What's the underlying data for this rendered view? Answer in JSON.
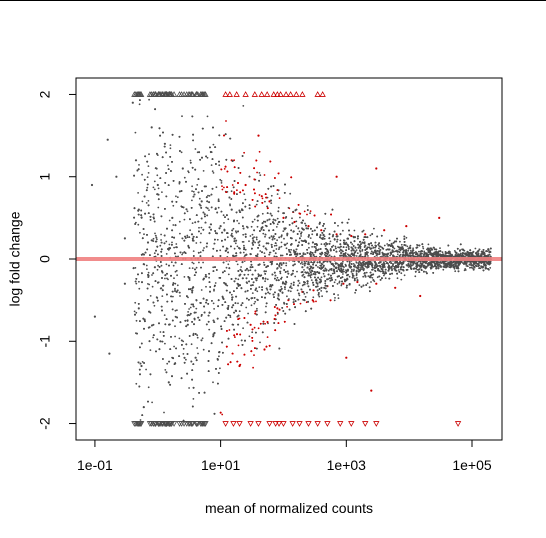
{
  "chart_data": {
    "type": "scatter",
    "title": "",
    "xlabel": "mean of normalized counts",
    "ylabel": "log fold change",
    "x_scale": "log10",
    "xlim": [
      0.05,
      300000
    ],
    "ylim": [
      -2.2,
      2.2
    ],
    "x_ticks": [
      {
        "value": 0.1,
        "label": "1e-01"
      },
      {
        "value": 10,
        "label": "1e+01"
      },
      {
        "value": 1000,
        "label": "1e+03"
      },
      {
        "value": 100000,
        "label": "1e+05"
      }
    ],
    "y_ticks": [
      {
        "value": -2,
        "label": "-2"
      },
      {
        "value": -1,
        "label": "-1"
      },
      {
        "value": 0,
        "label": "0"
      },
      {
        "value": 1,
        "label": "1"
      },
      {
        "value": 2,
        "label": "2"
      }
    ],
    "reference_line": {
      "y": 0,
      "color": "#f08080"
    },
    "grid": false,
    "legend": "none",
    "colors": {
      "not_significant": "#4d4d4d",
      "significant": "#cc0000",
      "reference": "#f08080"
    },
    "out_of_range_markers": {
      "up_triangles_at": 2,
      "down_triangles_at": -2
    },
    "series": [
      {
        "color": "#4d4d4d",
        "points": [
          [
            0.09,
            0.9
          ],
          [
            0.16,
            1.45
          ],
          [
            0.1,
            -0.7
          ],
          [
            0.17,
            -1.15
          ],
          [
            0.22,
            1.0
          ],
          [
            0.3,
            0.25
          ],
          [
            0.3,
            -0.3
          ],
          [
            0.4,
            1.9
          ],
          [
            0.45,
            1.2
          ],
          [
            0.5,
            0.6
          ],
          [
            0.5,
            -0.6
          ],
          [
            0.55,
            -1.3
          ],
          [
            0.6,
            -1.8
          ],
          [
            0.7,
            0.2
          ],
          [
            0.8,
            1.6
          ],
          [
            0.9,
            -0.1
          ],
          [
            1.0,
            0.9
          ],
          [
            1.1,
            -1.0
          ],
          [
            1.3,
            1.4
          ],
          [
            1.5,
            -1.5
          ],
          [
            1.7,
            0.5
          ],
          [
            2.0,
            -0.4
          ],
          [
            2.5,
            1.1
          ],
          [
            3.0,
            -0.8
          ],
          [
            3.5,
            0.3
          ],
          [
            4.0,
            -1.2
          ],
          [
            5.0,
            0.7
          ],
          [
            6.0,
            -0.5
          ],
          [
            7.0,
            1.3
          ],
          [
            8.0,
            -0.9
          ],
          [
            10,
            0.4
          ],
          [
            12,
            -0.3
          ],
          [
            15,
            0.6
          ],
          [
            20,
            -0.2
          ],
          [
            25,
            0.3
          ],
          [
            30,
            -0.1
          ],
          [
            40,
            0.2
          ],
          [
            50,
            -0.15
          ],
          [
            70,
            0.1
          ],
          [
            100,
            -0.05
          ],
          [
            150,
            0.08
          ],
          [
            200,
            -0.1
          ],
          [
            300,
            0.05
          ],
          [
            500,
            -0.03
          ],
          [
            800,
            0.04
          ],
          [
            1200,
            -0.02
          ],
          [
            2000,
            0.03
          ],
          [
            3500,
            -0.04
          ],
          [
            6000,
            0.02
          ],
          [
            10000,
            -0.03
          ],
          [
            20000,
            0.05
          ],
          [
            40000,
            -0.02
          ],
          [
            90000,
            0.03
          ]
        ]
      },
      {
        "color": "#cc0000",
        "points": [
          [
            15,
            1.2
          ],
          [
            20,
            -1.3
          ],
          [
            25,
            0.9
          ],
          [
            30,
            -0.8
          ],
          [
            40,
            1.5
          ],
          [
            50,
            -1.1
          ],
          [
            60,
            0.7
          ],
          [
            80,
            -0.6
          ],
          [
            100,
            0.5
          ],
          [
            120,
            -0.5
          ],
          [
            150,
            0.45
          ],
          [
            200,
            -0.4
          ],
          [
            250,
            0.4
          ],
          [
            300,
            -0.38
          ],
          [
            400,
            0.35
          ],
          [
            500,
            -0.33
          ],
          [
            700,
            0.3
          ],
          [
            900,
            -0.3
          ],
          [
            1200,
            0.28
          ],
          [
            1500,
            -0.28
          ],
          [
            2000,
            0.3
          ],
          [
            3000,
            -0.3
          ],
          [
            4000,
            0.35
          ],
          [
            6000,
            -0.35
          ],
          [
            9000,
            0.4
          ],
          [
            15000,
            -0.45
          ],
          [
            30000,
            0.5
          ],
          [
            700,
            1.0
          ],
          [
            1000,
            -1.2
          ],
          [
            2500,
            -1.6
          ],
          [
            3000,
            1.1
          ]
        ]
      }
    ]
  }
}
